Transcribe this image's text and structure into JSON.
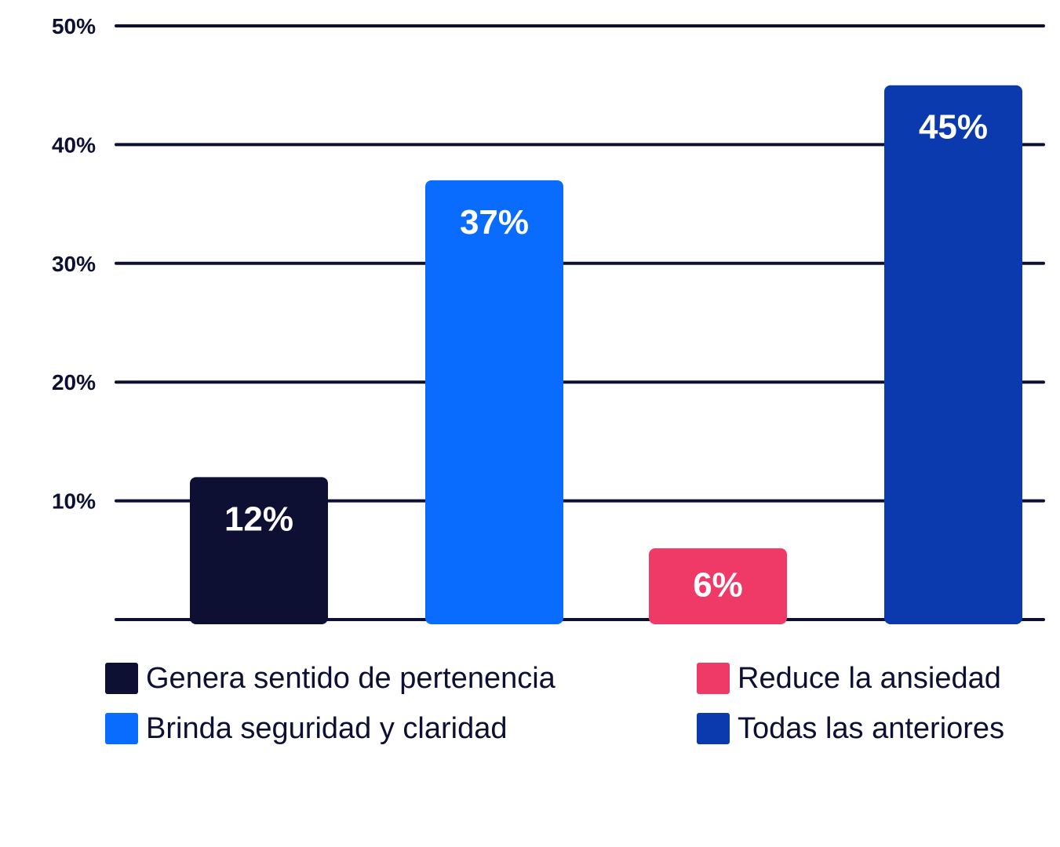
{
  "chart_data": {
    "type": "bar",
    "categories": [
      "Genera sentido de pertenencia",
      "Brinda seguridad y claridad",
      "Reduce la ansiedad",
      "Todas las anteriores"
    ],
    "values": [
      12,
      37,
      6,
      45
    ],
    "value_labels": [
      "12%",
      "37%",
      "6%",
      "45%"
    ],
    "colors": [
      "#0d1033",
      "#0a6cff",
      "#ef3a68",
      "#0a3aad"
    ],
    "ylim": [
      0,
      50
    ],
    "yticks": [
      10,
      20,
      30,
      40,
      50
    ],
    "ytick_labels": [
      "10%",
      "20%",
      "30%",
      "40%",
      "50%"
    ],
    "grid": true,
    "title": "",
    "xlabel": "",
    "ylabel": "",
    "legend_position": "bottom",
    "gridline_color": "#0d1033"
  },
  "legend": {
    "items": [
      {
        "label": "Genera sentido de pertenencia",
        "color": "#0d1033"
      },
      {
        "label": "Reduce la ansiedad",
        "color": "#ef3a68"
      },
      {
        "label": "Brinda seguridad y claridad",
        "color": "#0a6cff"
      },
      {
        "label": "Todas las anteriores",
        "color": "#0a3aad"
      }
    ]
  }
}
